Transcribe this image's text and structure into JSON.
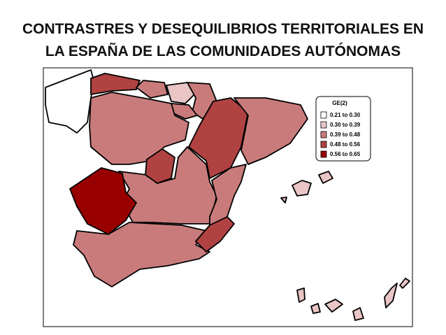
{
  "header": {
    "title_line1": "CONTRASTRES Y DESEQUILIBRIOS TERRITORIALES EN",
    "title_line2": "LA ESPAÑA DE LAS COMUNIDADES AUTÓNOMAS"
  },
  "legend": {
    "title": "GE(2)",
    "items": [
      {
        "label": "0.21 to 0.30",
        "color": "#ffffff"
      },
      {
        "label": "0.30 to 0.39",
        "color": "#e9c5c5"
      },
      {
        "label": "0.39 to 0.48",
        "color": "#c97b7b"
      },
      {
        "label": "0.48 to 0.56",
        "color": "#b04242"
      },
      {
        "label": "0.56 to 0.65",
        "color": "#990000"
      }
    ]
  }
}
